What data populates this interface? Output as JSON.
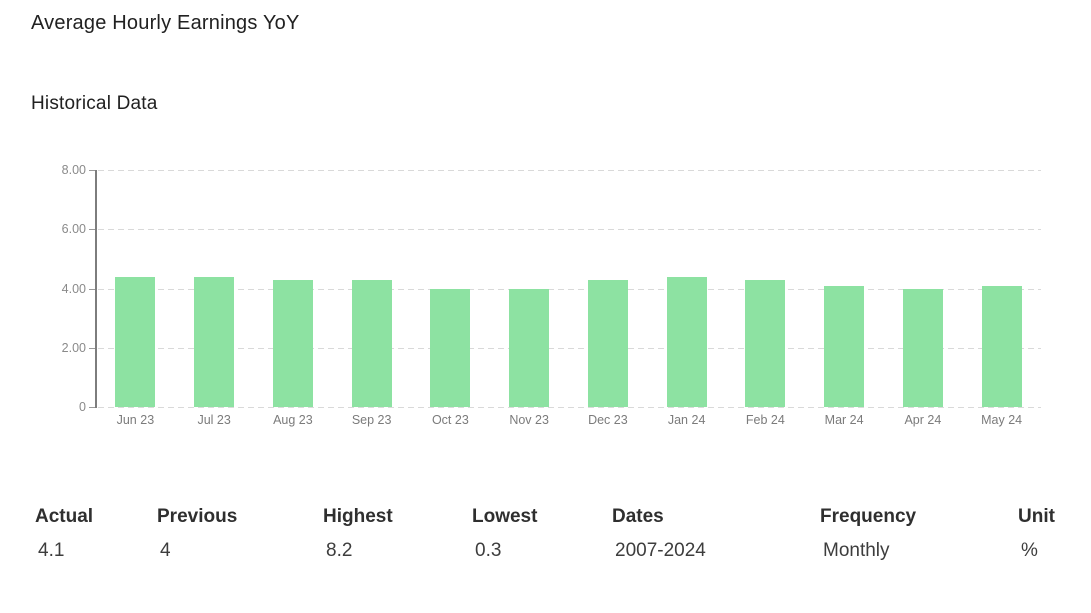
{
  "header": {
    "title": "Average Hourly Earnings YoY"
  },
  "chart_data": {
    "type": "bar",
    "title": "Historical Data",
    "categories": [
      "Jun 23",
      "Jul 23",
      "Aug 23",
      "Sep 23",
      "Oct 23",
      "Nov 23",
      "Dec 23",
      "Jan 24",
      "Feb 24",
      "Mar 24",
      "Apr 24",
      "May 24"
    ],
    "values": [
      4.4,
      4.4,
      4.3,
      4.3,
      4.0,
      4.0,
      4.3,
      4.4,
      4.3,
      4.1,
      4.0,
      4.1
    ],
    "xlabel": "",
    "ylabel": "",
    "ylim": [
      0,
      8
    ],
    "ytick_values": [
      8,
      6,
      4,
      2,
      0
    ],
    "ytick_labels": [
      "8.00",
      "6.00",
      "4.00",
      "2.00",
      "0"
    ],
    "grid": "horizontal dashed",
    "legend": "none",
    "bar_color": "#8de2a2",
    "grid_color": "#d9d9d9",
    "axis_color": "#7d7d7d",
    "tick_label_color": "#8a8a8a"
  },
  "summary": {
    "columns": [
      {
        "label": "Actual",
        "value": "4.1"
      },
      {
        "label": "Previous",
        "value": "4"
      },
      {
        "label": "Highest",
        "value": "8.2"
      },
      {
        "label": "Lowest",
        "value": "0.3"
      },
      {
        "label": "Dates",
        "value": "2007-2024"
      },
      {
        "label": "Frequency",
        "value": "Monthly"
      },
      {
        "label": "Unit",
        "value": "%"
      }
    ]
  }
}
